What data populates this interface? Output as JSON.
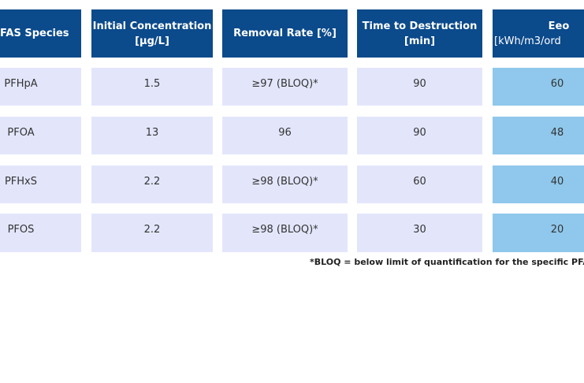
{
  "table": {
    "header": [
      [
        "FAS Species"
      ],
      [
        "Initial Concentration",
        "[µg/L]"
      ],
      [
        "Removal Rate [%]"
      ],
      [
        "Time to Destruction",
        "[min]"
      ],
      [
        "Eeo",
        "[kWh/m3/ord"
      ]
    ],
    "rows": [
      [
        "PFHpA",
        "1.5",
        "≥97 (BLOQ)*",
        "90",
        "60"
      ],
      [
        "PFOA",
        "13",
        "96",
        "90",
        "48"
      ],
      [
        "PFHxS",
        "2.2",
        "≥98 (BLOQ)*",
        "60",
        "40"
      ],
      [
        "PFOS",
        "2.2",
        "≥98 (BLOQ)*",
        "30",
        "20"
      ]
    ],
    "footnote": "*BLOQ = below limit of quantification for the specific PFAS co"
  }
}
